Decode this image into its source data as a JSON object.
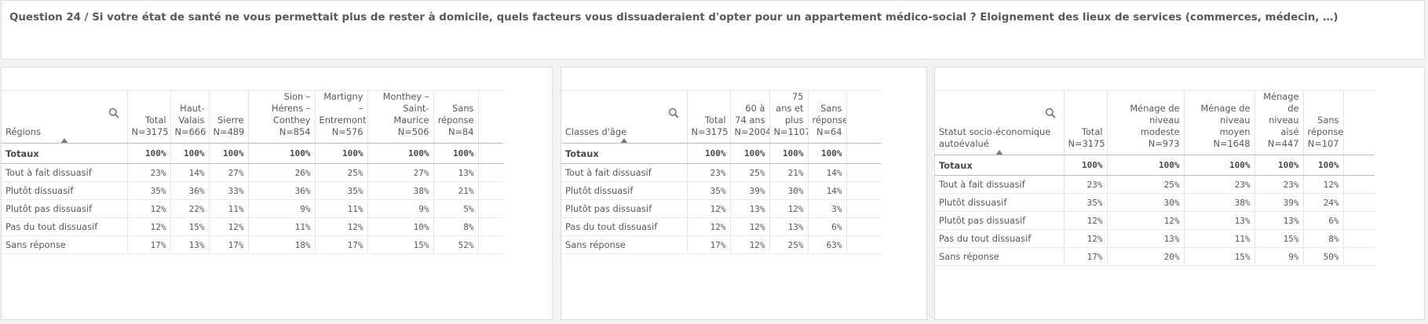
{
  "title": "Question 24 / Si votre état de santé ne vous permettait plus de rester à domicile, quels facteurs vous dissuaderaient d'opter pour un appartement médico-social ? Eloignement des lieux de services (commerces, médecin, …)",
  "tables": [
    {
      "dimension": "Régions",
      "columns": [
        "Total N=3175",
        "Haut-Valais N=666",
        "Sierre N=489",
        "Sion – Hérens – Conthey N=854",
        "Martigny – Entremont N=576",
        "Monthey – Saint-Maurice N=506",
        "Sans réponse N=84"
      ],
      "total_row": {
        "label": "Totaux",
        "values": [
          "100%",
          "100%",
          "100%",
          "100%",
          "100%",
          "100%",
          "100%"
        ]
      },
      "rows": [
        {
          "label": "Tout à fait dissuasif",
          "values": [
            "23%",
            "14%",
            "27%",
            "26%",
            "25%",
            "27%",
            "13%"
          ]
        },
        {
          "label": "Plutôt dissuasif",
          "values": [
            "35%",
            "36%",
            "33%",
            "36%",
            "35%",
            "38%",
            "21%"
          ]
        },
        {
          "label": "Plutôt pas dissuasif",
          "values": [
            "12%",
            "22%",
            "11%",
            "9%",
            "11%",
            "9%",
            "5%"
          ]
        },
        {
          "label": "Pas du tout dissuasif",
          "values": [
            "12%",
            "15%",
            "12%",
            "11%",
            "12%",
            "10%",
            "8%"
          ]
        },
        {
          "label": "Sans réponse",
          "values": [
            "17%",
            "13%",
            "17%",
            "18%",
            "17%",
            "15%",
            "52%"
          ]
        }
      ]
    },
    {
      "dimension": "Classes d'âge",
      "columns": [
        "Total N=3175",
        "60 à 74 ans N=2004",
        "75 ans et plus N=1107",
        "Sans réponse N=64"
      ],
      "total_row": {
        "label": "Totaux",
        "values": [
          "100%",
          "100%",
          "100%",
          "100%"
        ]
      },
      "rows": [
        {
          "label": "Tout à fait dissuasif",
          "values": [
            "23%",
            "25%",
            "21%",
            "14%"
          ]
        },
        {
          "label": "Plutôt dissuasif",
          "values": [
            "35%",
            "39%",
            "30%",
            "14%"
          ]
        },
        {
          "label": "Plutôt pas dissuasif",
          "values": [
            "12%",
            "13%",
            "12%",
            "3%"
          ]
        },
        {
          "label": "Pas du tout dissuasif",
          "values": [
            "12%",
            "12%",
            "13%",
            "6%"
          ]
        },
        {
          "label": "Sans réponse",
          "values": [
            "17%",
            "12%",
            "25%",
            "63%"
          ]
        }
      ]
    },
    {
      "dimension": "Statut socio-économique autoévalué",
      "columns": [
        "Total N=3175",
        "Ménage de niveau modeste N=973",
        "Ménage de niveau moyen N=1648",
        "Ménage de niveau aisé N=447",
        "Sans réponse N=107"
      ],
      "total_row": {
        "label": "Totaux",
        "values": [
          "100%",
          "100%",
          "100%",
          "100%",
          "100%"
        ]
      },
      "rows": [
        {
          "label": "Tout à fait dissuasif",
          "values": [
            "23%",
            "25%",
            "23%",
            "23%",
            "12%"
          ]
        },
        {
          "label": "Plutôt dissuasif",
          "values": [
            "35%",
            "30%",
            "38%",
            "39%",
            "24%"
          ]
        },
        {
          "label": "Plutôt pas dissuasif",
          "values": [
            "12%",
            "12%",
            "13%",
            "13%",
            "6%"
          ]
        },
        {
          "label": "Pas du tout dissuasif",
          "values": [
            "12%",
            "13%",
            "11%",
            "15%",
            "8%"
          ]
        },
        {
          "label": "Sans réponse",
          "values": [
            "17%",
            "20%",
            "15%",
            "9%",
            "50%"
          ]
        }
      ]
    }
  ]
}
